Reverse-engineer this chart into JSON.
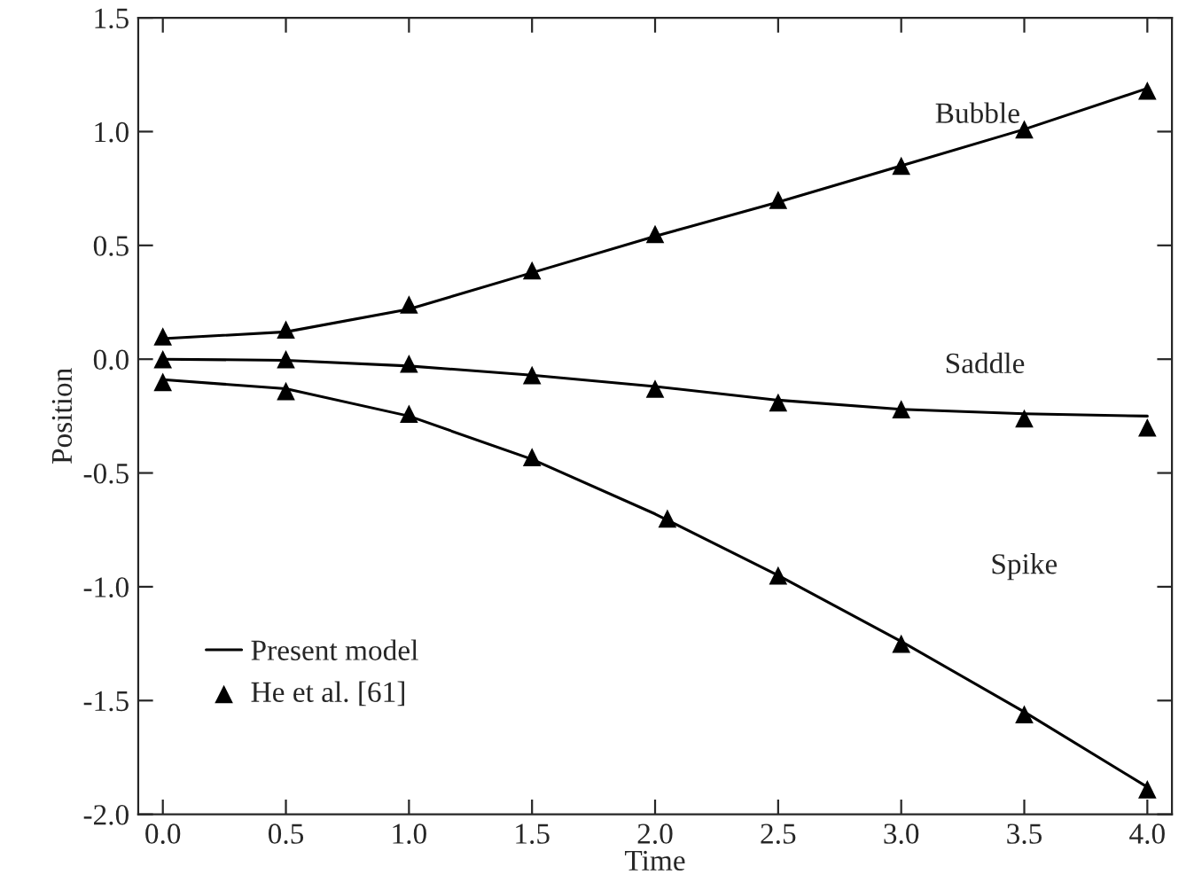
{
  "chart_data": {
    "type": "line",
    "xlabel": "Time",
    "ylabel": "Position",
    "xlim": [
      -0.1,
      4.1
    ],
    "ylim": [
      -2.0,
      1.5
    ],
    "xticks": [
      {
        "value": 0,
        "label": "0.0"
      },
      0.5,
      {
        "value": 1,
        "label": "1.0"
      },
      1.5,
      {
        "value": 2,
        "label": "2.0"
      },
      2.5,
      {
        "value": 3,
        "label": "3.0"
      },
      3.5,
      {
        "value": 4,
        "label": "4.0"
      }
    ],
    "yticks": [
      {
        "value": -2,
        "label": "-2.0"
      },
      {
        "value": -1.5,
        "label": "-1.5"
      },
      {
        "value": -1,
        "label": "-1.0"
      },
      {
        "value": -0.5,
        "label": "-0.5"
      },
      {
        "value": 0,
        "label": "0.0"
      },
      0.5,
      {
        "value": 1,
        "label": "1.0"
      },
      1.5
    ],
    "grid": false,
    "legend": "bottom left",
    "series": [
      {
        "name": "Present model",
        "color": "#000000",
        "marker": "none",
        "x": [
          0,
          0.5,
          1,
          1.5,
          2,
          2.5,
          3,
          3.5,
          4
        ],
        "values": [
          0.09,
          0.12,
          0.22,
          0.38,
          0.54,
          0.69,
          0.85,
          1.01,
          1.19
        ]
      },
      {
        "color": "#000000",
        "marker": "none",
        "x": [
          0,
          0.5,
          1,
          1.5,
          2,
          2.5,
          3,
          3.5,
          4
        ],
        "values": [
          0.0,
          -0.005,
          -0.03,
          -0.07,
          -0.12,
          -0.18,
          -0.22,
          -0.24,
          -0.25
        ]
      },
      {
        "color": "#000000",
        "marker": "none",
        "x": [
          0,
          0.5,
          1,
          1.5,
          2,
          2.5,
          3,
          3.5,
          4
        ],
        "values": [
          -0.09,
          -0.13,
          -0.25,
          -0.44,
          -0.68,
          -0.95,
          -1.24,
          -1.55,
          -1.88
        ]
      },
      {
        "name": "He et al. [61]",
        "type": "scatter",
        "color": "#000000",
        "marker": "triangle",
        "x": [
          0,
          0.5,
          1,
          1.5,
          2,
          2.5,
          3,
          3.5,
          4
        ],
        "values": [
          0.1,
          0.13,
          0.24,
          0.39,
          0.55,
          0.7,
          0.85,
          1.01,
          1.18
        ]
      },
      {
        "type": "scatter",
        "color": "#000000",
        "marker": "triangle",
        "x": [
          0,
          0.5,
          1,
          1.5,
          2,
          2.5,
          3,
          3.5,
          4
        ],
        "values": [
          0.0,
          0.0,
          -0.02,
          -0.07,
          -0.13,
          -0.19,
          -0.22,
          -0.26,
          -0.3
        ]
      },
      {
        "type": "scatter",
        "color": "#000000",
        "marker": "triangle",
        "x": [
          0,
          0.5,
          1,
          1.5,
          2.05,
          2.5,
          3,
          3.5,
          4
        ],
        "values": [
          -0.1,
          -0.14,
          -0.24,
          -0.43,
          -0.7,
          -0.95,
          -1.25,
          -1.56,
          -1.89
        ]
      }
    ],
    "annotations": [
      "Bubble",
      "Saddle",
      "Spike"
    ]
  }
}
